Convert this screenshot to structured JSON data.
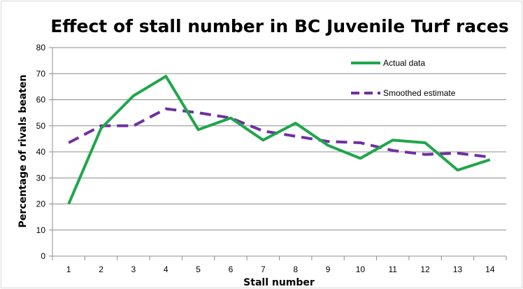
{
  "chart_data": {
    "type": "line",
    "title": "Effect of stall number in BC Juvenile Turf races",
    "xlabel": "Stall number",
    "ylabel": "Percentage of rivals beaten",
    "x": [
      1,
      2,
      3,
      4,
      5,
      6,
      7,
      8,
      9,
      10,
      11,
      12,
      13,
      14
    ],
    "ylim": [
      0,
      80
    ],
    "yticks": [
      0,
      10,
      20,
      30,
      40,
      50,
      60,
      70,
      80
    ],
    "grid": "horizontal",
    "legend_position": "top-right",
    "series": [
      {
        "name": "Actual data",
        "color": "#1fa64a",
        "style": "solid",
        "values": [
          20,
          49,
          61.5,
          69,
          48.5,
          53,
          44.5,
          51,
          42.5,
          37.5,
          44.5,
          43.5,
          33,
          37
        ]
      },
      {
        "name": "Smoothed estimate",
        "color": "#7030a0",
        "style": "dashed",
        "values": [
          43.5,
          50,
          50,
          56.5,
          55,
          53,
          48,
          46,
          44,
          43.5,
          40.5,
          39,
          39.5,
          38
        ]
      }
    ]
  }
}
